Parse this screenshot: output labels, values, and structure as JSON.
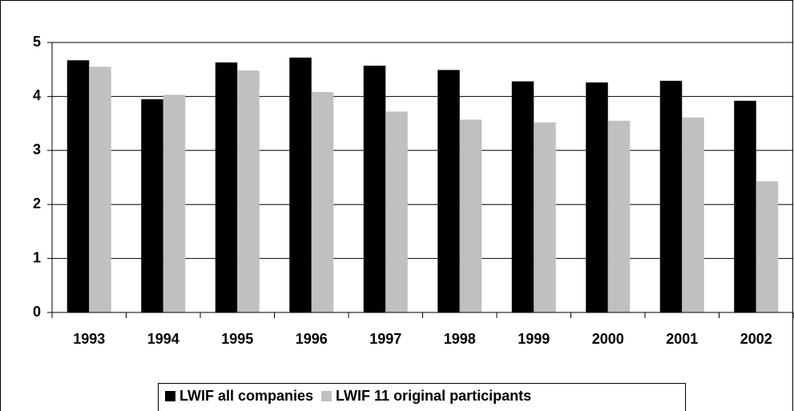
{
  "chart_data": {
    "type": "bar",
    "categories": [
      "1993",
      "1994",
      "1995",
      "1996",
      "1997",
      "1998",
      "1999",
      "2000",
      "2001",
      "2002"
    ],
    "series": [
      {
        "name": "LWIF all companies",
        "color": "#000000",
        "values": [
          4.67,
          3.95,
          4.63,
          4.72,
          4.57,
          4.49,
          4.28,
          4.26,
          4.29,
          3.92
        ]
      },
      {
        "name": "LWIF 11 original participants",
        "color": "#c0c0c0",
        "values": [
          4.55,
          4.03,
          4.48,
          4.08,
          3.72,
          3.57,
          3.52,
          3.55,
          3.61,
          2.43
        ]
      }
    ],
    "ylim": [
      0,
      5
    ],
    "yticks": [
      0,
      1,
      2,
      3,
      4,
      5
    ],
    "grid": true,
    "legend": "bottom"
  }
}
